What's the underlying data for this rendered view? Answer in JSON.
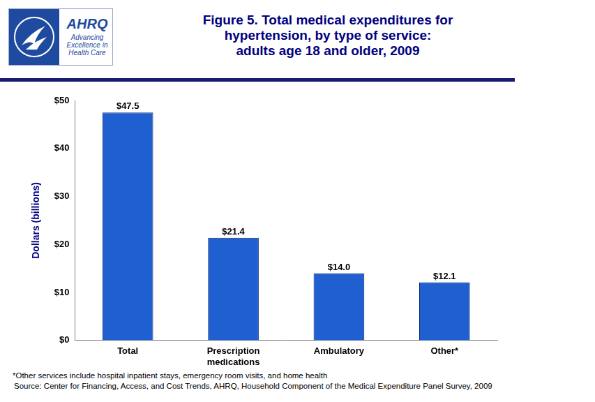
{
  "header": {
    "logo_name": "AHRQ",
    "logo_tagline": "Advancing Excellence in Health Care"
  },
  "chart_data": {
    "type": "bar",
    "title": [
      "Figure 5. Total medical expenditures for",
      "hypertension, by type of service:",
      "adults age 18 and older, 2009"
    ],
    "ylabel": "Dollars (billions)",
    "categories": [
      "Total",
      "Prescription medications",
      "Ambulatory",
      "Other*"
    ],
    "values": [
      47.5,
      21.4,
      14.0,
      12.1
    ],
    "value_labels": [
      "$47.5",
      "$21.4",
      "$14.0",
      "$12.1"
    ],
    "color": "#1f5fd0",
    "ylim": [
      0,
      50
    ],
    "yticks": [
      {
        "value": 0,
        "label": "$0"
      },
      {
        "value": 10,
        "label": "$10"
      },
      {
        "value": 20,
        "label": "$20"
      },
      {
        "value": 30,
        "label": "$30"
      },
      {
        "value": 40,
        "label": "$40"
      },
      {
        "value": 50,
        "label": "$50"
      }
    ],
    "grid": false,
    "data_labels": true,
    "footnote": "*Other services include hospital inpatient stays, emergency room visits, and home health",
    "source": "Source: Center for Financing, Access, and Cost Trends, AHRQ, Household Component of the Medical Expenditure Panel Survey, 2009"
  }
}
